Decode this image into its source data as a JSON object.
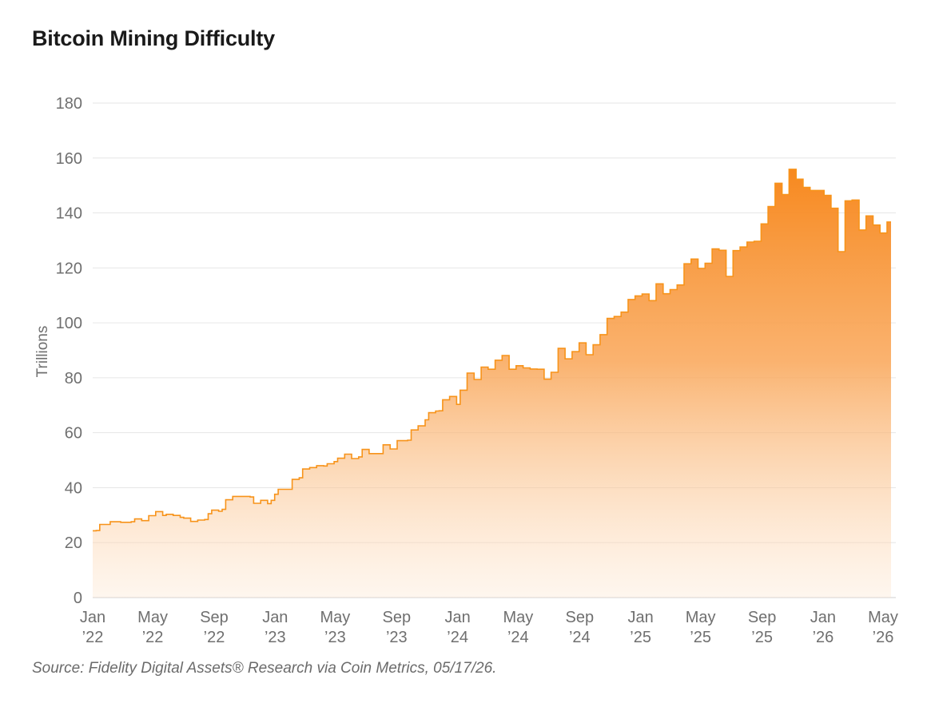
{
  "chart_data": {
    "type": "area",
    "title": "Bitcoin Mining Difficulty",
    "ylabel": "Trillions",
    "xlabel": "",
    "ylim": [
      0,
      180
    ],
    "yticks": [
      0,
      20,
      40,
      60,
      80,
      100,
      120,
      140,
      160,
      180
    ],
    "xlim": [
      "2022-01",
      "2026-05"
    ],
    "xticks": [
      {
        "date": "2022-01",
        "line1": "Jan",
        "line2": "’22"
      },
      {
        "date": "2022-05",
        "line1": "May",
        "line2": "’22"
      },
      {
        "date": "2022-09",
        "line1": "Sep",
        "line2": "’22"
      },
      {
        "date": "2023-01",
        "line1": "Jan",
        "line2": "’23"
      },
      {
        "date": "2023-05",
        "line1": "May",
        "line2": "’23"
      },
      {
        "date": "2023-09",
        "line1": "Sep",
        "line2": "’23"
      },
      {
        "date": "2024-01",
        "line1": "Jan",
        "line2": "’24"
      },
      {
        "date": "2024-05",
        "line1": "May",
        "line2": "’24"
      },
      {
        "date": "2024-09",
        "line1": "Sep",
        "line2": "’24"
      },
      {
        "date": "2025-01",
        "line1": "Jan",
        "line2": "’25"
      },
      {
        "date": "2025-05",
        "line1": "May",
        "line2": "’25"
      },
      {
        "date": "2025-09",
        "line1": "Sep",
        "line2": "’25"
      },
      {
        "date": "2026-01",
        "line1": "Jan",
        "line2": "’26"
      },
      {
        "date": "2026-05",
        "line1": "May",
        "line2": "’26"
      }
    ],
    "grid": true,
    "color": "#f7931a",
    "series": [
      {
        "step": true,
        "points": [
          [
            "2022-01-01",
            24.3
          ],
          [
            "2022-01-08",
            24.4
          ],
          [
            "2022-01-15",
            26.6
          ],
          [
            "2022-01-29",
            26.6
          ],
          [
            "2022-02-05",
            27.6
          ],
          [
            "2022-02-19",
            27.6
          ],
          [
            "2022-02-26",
            27.4
          ],
          [
            "2022-03-19",
            27.6
          ],
          [
            "2022-03-26",
            28.6
          ],
          [
            "2022-04-09",
            28.0
          ],
          [
            "2022-04-23",
            29.8
          ],
          [
            "2022-05-07",
            31.3
          ],
          [
            "2022-05-14",
            31.3
          ],
          [
            "2022-05-21",
            29.9
          ],
          [
            "2022-05-28",
            30.3
          ],
          [
            "2022-06-11",
            29.9
          ],
          [
            "2022-06-25",
            29.2
          ],
          [
            "2022-07-02",
            28.9
          ],
          [
            "2022-07-16",
            27.7
          ],
          [
            "2022-07-30",
            28.2
          ],
          [
            "2022-08-13",
            28.4
          ],
          [
            "2022-08-20",
            30.5
          ],
          [
            "2022-08-27",
            31.8
          ],
          [
            "2022-09-10",
            31.4
          ],
          [
            "2022-09-17",
            32.1
          ],
          [
            "2022-09-24",
            35.6
          ],
          [
            "2022-10-08",
            36.8
          ],
          [
            "2022-11-05",
            36.8
          ],
          [
            "2022-11-12",
            36.6
          ],
          [
            "2022-11-19",
            34.3
          ],
          [
            "2022-12-03",
            35.4
          ],
          [
            "2022-12-17",
            34.2
          ],
          [
            "2022-12-24",
            35.4
          ],
          [
            "2022-12-31",
            37.6
          ],
          [
            "2023-01-07",
            39.4
          ],
          [
            "2023-01-28",
            39.4
          ],
          [
            "2023-02-04",
            43.0
          ],
          [
            "2023-02-18",
            43.6
          ],
          [
            "2023-02-25",
            46.8
          ],
          [
            "2023-03-11",
            47.3
          ],
          [
            "2023-03-25",
            48.0
          ],
          [
            "2023-04-08",
            47.9
          ],
          [
            "2023-04-15",
            48.7
          ],
          [
            "2023-04-29",
            49.5
          ],
          [
            "2023-05-06",
            50.7
          ],
          [
            "2023-05-20",
            52.2
          ],
          [
            "2023-06-03",
            50.6
          ],
          [
            "2023-06-17",
            51.2
          ],
          [
            "2023-06-24",
            53.9
          ],
          [
            "2023-07-08",
            52.4
          ],
          [
            "2023-07-22",
            52.4
          ],
          [
            "2023-08-05",
            55.6
          ],
          [
            "2023-08-19",
            54.1
          ],
          [
            "2023-09-02",
            57.1
          ],
          [
            "2023-09-23",
            57.3
          ],
          [
            "2023-09-30",
            61.0
          ],
          [
            "2023-10-14",
            62.5
          ],
          [
            "2023-10-28",
            64.7
          ],
          [
            "2023-11-04",
            67.3
          ],
          [
            "2023-11-18",
            67.9
          ],
          [
            "2023-11-25",
            68.0
          ],
          [
            "2023-12-02",
            72.0
          ],
          [
            "2023-12-16",
            73.2
          ],
          [
            "2023-12-30",
            70.3
          ],
          [
            "2024-01-06",
            75.5
          ],
          [
            "2024-01-20",
            81.7
          ],
          [
            "2024-02-03",
            79.4
          ],
          [
            "2024-02-17",
            83.9
          ],
          [
            "2024-03-02",
            83.1
          ],
          [
            "2024-03-16",
            86.4
          ],
          [
            "2024-03-30",
            88.1
          ],
          [
            "2024-04-13",
            83.1
          ],
          [
            "2024-04-27",
            84.4
          ],
          [
            "2024-05-11",
            83.6
          ],
          [
            "2024-05-25",
            83.2
          ],
          [
            "2024-06-08",
            83.1
          ],
          [
            "2024-06-22",
            79.5
          ],
          [
            "2024-07-06",
            82.0
          ],
          [
            "2024-07-20",
            90.7
          ],
          [
            "2024-08-03",
            86.9
          ],
          [
            "2024-08-17",
            89.5
          ],
          [
            "2024-08-31",
            92.7
          ],
          [
            "2024-09-14",
            88.4
          ],
          [
            "2024-09-28",
            92.0
          ],
          [
            "2024-10-12",
            95.7
          ],
          [
            "2024-10-26",
            101.6
          ],
          [
            "2024-11-09",
            102.3
          ],
          [
            "2024-11-23",
            103.9
          ],
          [
            "2024-12-07",
            108.5
          ],
          [
            "2024-12-21",
            109.8
          ],
          [
            "2025-01-04",
            110.5
          ],
          [
            "2025-01-18",
            108.1
          ],
          [
            "2025-02-01",
            114.2
          ],
          [
            "2025-02-15",
            110.6
          ],
          [
            "2025-03-01",
            112.1
          ],
          [
            "2025-03-15",
            113.8
          ],
          [
            "2025-03-29",
            121.5
          ],
          [
            "2025-04-12",
            123.2
          ],
          [
            "2025-04-26",
            119.8
          ],
          [
            "2025-05-10",
            121.7
          ],
          [
            "2025-05-24",
            126.9
          ],
          [
            "2025-06-07",
            126.4
          ],
          [
            "2025-06-21",
            116.9
          ],
          [
            "2025-07-05",
            126.3
          ],
          [
            "2025-07-19",
            127.6
          ],
          [
            "2025-08-02",
            129.4
          ],
          [
            "2025-08-16",
            129.7
          ],
          [
            "2025-08-30",
            136.0
          ],
          [
            "2025-09-13",
            142.3
          ],
          [
            "2025-09-27",
            150.8
          ],
          [
            "2025-10-11",
            146.7
          ],
          [
            "2025-10-25",
            155.9
          ],
          [
            "2025-11-08",
            152.3
          ],
          [
            "2025-11-22",
            149.3
          ],
          [
            "2025-12-06",
            148.2
          ],
          [
            "2025-12-20",
            148.2
          ],
          [
            "2026-01-03",
            146.4
          ],
          [
            "2026-01-17",
            141.7
          ],
          [
            "2026-01-31",
            125.9
          ],
          [
            "2026-02-14",
            144.4
          ],
          [
            "2026-02-28",
            144.7
          ],
          [
            "2026-03-14",
            133.8
          ],
          [
            "2026-03-28",
            138.9
          ],
          [
            "2026-04-11",
            135.6
          ],
          [
            "2026-04-25",
            132.7
          ],
          [
            "2026-05-09",
            136.7
          ],
          [
            "2026-05-17",
            136.7
          ]
        ]
      }
    ],
    "source": "Source: Fidelity Digital Assets® Research via Coin Metrics, 05/17/26."
  }
}
